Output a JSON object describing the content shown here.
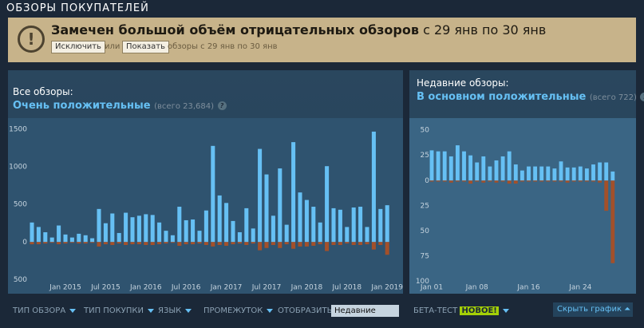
{
  "section_title": "ОБЗОРЫ ПОКУПАТЕЛЕЙ",
  "alert": {
    "headline": "Замечен большой объём отрицательных обзоров",
    "period": "с 29 янв по 30 янв",
    "exclude_button": "Исключить",
    "or": "или",
    "show_button": "Показать",
    "note": "обзоры с 29 янв по 30 янв"
  },
  "summaries": [
    {
      "label": "Все обзоры:",
      "rating": "Очень положительные",
      "total": "(всего 23,684)",
      "help": "?"
    },
    {
      "label": "Недавние обзоры:",
      "rating": "В основном положительные",
      "total": "(всего 722)",
      "help": "?"
    }
  ],
  "chart_data": [
    {
      "type": "bar",
      "stacked_sign": true,
      "grid": false,
      "categories": [
        null,
        null,
        null,
        null,
        null,
        "Jan 2015",
        null,
        null,
        null,
        null,
        null,
        "Jul 2015",
        null,
        null,
        null,
        null,
        null,
        "Jan 2016",
        null,
        null,
        null,
        null,
        null,
        "Jul 2016",
        null,
        null,
        null,
        null,
        null,
        "Jan 2017",
        null,
        null,
        null,
        null,
        null,
        "Jul 2017",
        null,
        null,
        null,
        null,
        null,
        "Jan 2018",
        null,
        null,
        null,
        null,
        null,
        "Jul 2018",
        null,
        null,
        null,
        null,
        null,
        "Jan 2019"
      ],
      "series": [
        {
          "color": "#66c0f4",
          "values": [
            260,
            200,
            130,
            60,
            220,
            100,
            60,
            110,
            90,
            50,
            440,
            250,
            380,
            120,
            390,
            330,
            350,
            370,
            360,
            260,
            150,
            90,
            470,
            290,
            300,
            150,
            420,
            1280,
            620,
            520,
            280,
            130,
            450,
            180,
            1240,
            900,
            350,
            980,
            230,
            1330,
            660,
            560,
            470,
            260,
            1010,
            450,
            430,
            200,
            460,
            470,
            200,
            1470,
            440,
            490
          ]
        },
        {
          "color": "#a3502a",
          "values": [
            -30,
            -30,
            -20,
            -10,
            -30,
            -20,
            -10,
            -20,
            -20,
            -10,
            -60,
            -30,
            -40,
            -20,
            -40,
            -30,
            -30,
            -40,
            -40,
            -30,
            -20,
            -10,
            -50,
            -30,
            -30,
            -20,
            -40,
            -60,
            -40,
            -50,
            -30,
            -20,
            -40,
            -20,
            -110,
            -80,
            -40,
            -80,
            -30,
            -90,
            -60,
            -60,
            -50,
            -30,
            -120,
            -40,
            -40,
            -20,
            -40,
            -40,
            -30,
            -100,
            -40,
            -170
          ]
        }
      ],
      "ylim": [
        -550,
        1650
      ],
      "yticks": [
        1500,
        1000,
        500,
        0,
        {
          "value": -500,
          "label": "500"
        }
      ]
    },
    {
      "type": "bar",
      "stacked_sign": true,
      "grid": false,
      "categories": [
        "Jan 01",
        null,
        null,
        null,
        null,
        null,
        null,
        "Jan 08",
        null,
        null,
        null,
        null,
        null,
        null,
        null,
        "Jan 16",
        null,
        null,
        null,
        null,
        null,
        null,
        null,
        "Jan 24",
        null,
        null,
        null,
        null,
        null
      ],
      "series": [
        {
          "color": "#66c0f4",
          "values": [
            30,
            29,
            29,
            24,
            35,
            29,
            25,
            18,
            24,
            14,
            20,
            24,
            29,
            16,
            10,
            14,
            14,
            14,
            14,
            12,
            19,
            13,
            13,
            14,
            12,
            16,
            18,
            18,
            9
          ]
        },
        {
          "color": "#a3502a",
          "values": [
            -1,
            -1,
            -1,
            -2,
            -1,
            -1,
            -3,
            -1,
            -2,
            -1,
            -2,
            -1,
            -3,
            -3,
            -1,
            -1,
            -1,
            -1,
            -1,
            -1,
            -1,
            -2,
            -1,
            -1,
            -1,
            -1,
            -2,
            -30,
            -82
          ]
        }
      ],
      "ylim": [
        -102,
        62
      ],
      "yticks": [
        50,
        25,
        0,
        {
          "value": -25,
          "label": "25"
        },
        {
          "value": -50,
          "label": "50"
        },
        {
          "value": -75,
          "label": "75"
        },
        {
          "value": -100,
          "label": "100"
        }
      ]
    }
  ],
  "filters": {
    "review_type": "ТИП ОБЗОРА",
    "purchase_type": "ТИП ПОКУПКИ",
    "language": "ЯЗЫК",
    "date_range": "ПРОМЕЖУТОК",
    "display": "ОТОБРАЗИТЬ:",
    "display_value": "Недавние",
    "beta": "БЕТА-ТЕСТ",
    "new_badge": "НОВОЕ!",
    "hide_graph": "Скрыть график"
  }
}
